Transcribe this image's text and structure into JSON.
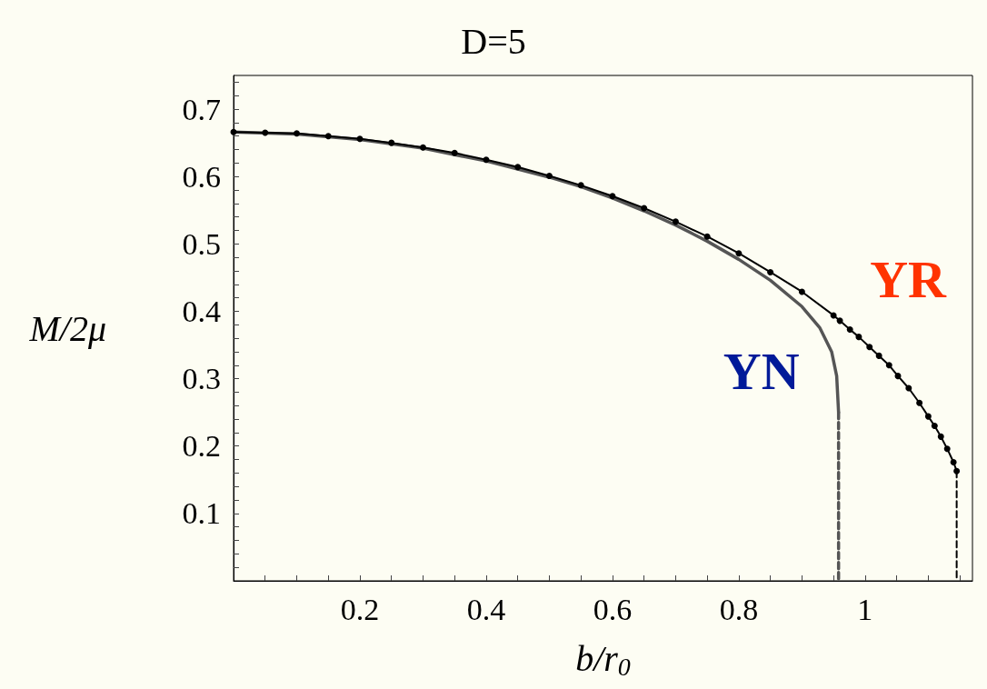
{
  "chart_data": {
    "type": "line",
    "title": "D=5",
    "xlabel": "b/r$_{0}$",
    "ylabel": "M/2μ",
    "xlim": [
      0,
      1.17
    ],
    "ylim": [
      0,
      0.75
    ],
    "xticks": [
      {
        "value": 0.05,
        "label": null
      },
      {
        "value": 0.1,
        "label": null
      },
      {
        "value": 0.15,
        "label": null
      },
      0.2,
      {
        "value": 0.25,
        "label": null
      },
      {
        "value": 0.3,
        "label": null
      },
      {
        "value": 0.35,
        "label": null
      },
      0.4,
      {
        "value": 0.45,
        "label": null
      },
      {
        "value": 0.5,
        "label": null
      },
      {
        "value": 0.55,
        "label": null
      },
      0.6,
      {
        "value": 0.65,
        "label": null
      },
      {
        "value": 0.7,
        "label": null
      },
      {
        "value": 0.75,
        "label": null
      },
      0.8,
      {
        "value": 0.85,
        "label": null
      },
      {
        "value": 0.9,
        "label": null
      },
      {
        "value": 0.95,
        "label": null
      },
      1,
      {
        "value": 1.05,
        "label": null
      },
      {
        "value": 1.1,
        "label": null
      },
      {
        "value": 1.15,
        "label": null
      }
    ],
    "yticks": [
      {
        "value": 0.02,
        "label": null
      },
      {
        "value": 0.04,
        "label": null
      },
      {
        "value": 0.06,
        "label": null
      },
      {
        "value": 0.08,
        "label": null
      },
      0.1,
      {
        "value": 0.12,
        "label": null
      },
      {
        "value": 0.14,
        "label": null
      },
      {
        "value": 0.16,
        "label": null
      },
      {
        "value": 0.18,
        "label": null
      },
      0.2,
      {
        "value": 0.22,
        "label": null
      },
      {
        "value": 0.24,
        "label": null
      },
      {
        "value": 0.26,
        "label": null
      },
      {
        "value": 0.28,
        "label": null
      },
      0.3,
      {
        "value": 0.32,
        "label": null
      },
      {
        "value": 0.34,
        "label": null
      },
      {
        "value": 0.36,
        "label": null
      },
      {
        "value": 0.38,
        "label": null
      },
      0.4,
      {
        "value": 0.42,
        "label": null
      },
      {
        "value": 0.44,
        "label": null
      },
      {
        "value": 0.46,
        "label": null
      },
      {
        "value": 0.48,
        "label": null
      },
      0.5,
      {
        "value": 0.52,
        "label": null
      },
      {
        "value": 0.54,
        "label": null
      },
      {
        "value": 0.56,
        "label": null
      },
      {
        "value": 0.58,
        "label": null
      },
      0.6,
      {
        "value": 0.62,
        "label": null
      },
      {
        "value": 0.64,
        "label": null
      },
      {
        "value": 0.66,
        "label": null
      },
      {
        "value": 0.68,
        "label": null
      },
      0.7,
      {
        "value": 0.72,
        "label": null
      },
      {
        "value": 0.74,
        "label": null
      }
    ],
    "grid": false,
    "legend": false,
    "series": [
      {
        "name": "YN",
        "color": "#555555",
        "line_style": "solid",
        "marker": "none",
        "x": [
          0,
          0.1,
          0.2,
          0.3,
          0.4,
          0.5,
          0.55,
          0.6,
          0.65,
          0.7,
          0.75,
          0.8,
          0.85,
          0.9,
          0.928,
          0.947,
          0.955,
          0.958
        ],
        "values": [
          0.666,
          0.663,
          0.655,
          0.642,
          0.623,
          0.599,
          0.585,
          0.568,
          0.549,
          0.528,
          0.504,
          0.477,
          0.446,
          0.407,
          0.376,
          0.34,
          0.304,
          0.25
        ]
      },
      {
        "color": "#555555",
        "line_style": "dashed",
        "marker": "none",
        "x": [
          0.958,
          0.958
        ],
        "values": [
          0.25,
          0
        ]
      },
      {
        "name": "YR",
        "color": "#000000",
        "line_style": "solid",
        "marker": "circle",
        "x": [
          0,
          0.05,
          0.1,
          0.15,
          0.2,
          0.25,
          0.3,
          0.35,
          0.4,
          0.45,
          0.5,
          0.55,
          0.6,
          0.65,
          0.7,
          0.75,
          0.8,
          0.85,
          0.9,
          0.95,
          0.96,
          0.976,
          0.99,
          1.007,
          1.022,
          1.038,
          1.052,
          1.069,
          1.086,
          1.1,
          1.11,
          1.12,
          1.13,
          1.14,
          1.145
        ],
        "values": [
          0.666,
          0.665,
          0.664,
          0.66,
          0.656,
          0.65,
          0.643,
          0.635,
          0.625,
          0.614,
          0.601,
          0.587,
          0.571,
          0.553,
          0.533,
          0.511,
          0.486,
          0.458,
          0.429,
          0.394,
          0.386,
          0.373,
          0.362,
          0.347,
          0.334,
          0.32,
          0.304,
          0.286,
          0.264,
          0.244,
          0.23,
          0.214,
          0.196,
          0.176,
          0.163
        ]
      },
      {
        "color": "#000000",
        "line_style": "dashed",
        "marker": "none",
        "x": [
          1.145,
          1.145
        ],
        "values": [
          0.163,
          0
        ]
      }
    ]
  }
}
